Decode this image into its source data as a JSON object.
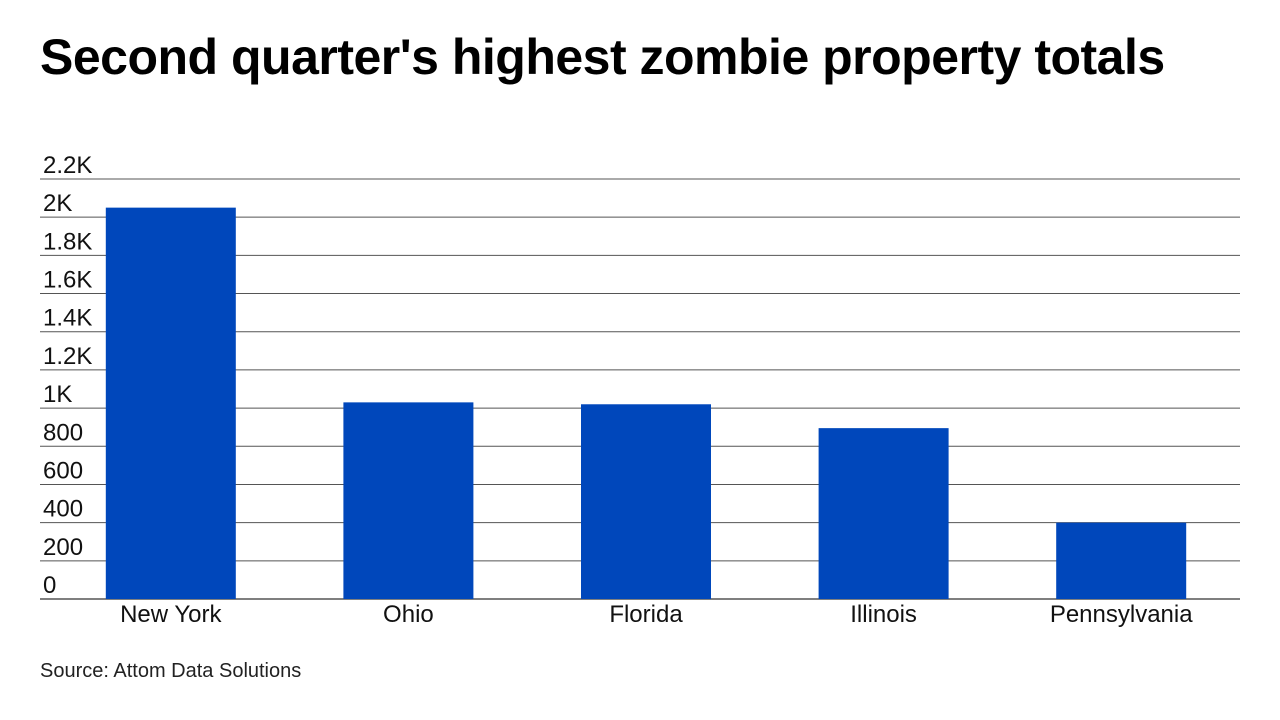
{
  "title": "Second quarter's highest zombie property totals",
  "source": "Source: Attom Data Solutions",
  "colors": {
    "bar": "#0047BB",
    "grid": "#555555",
    "text": "#111111"
  },
  "chart_data": {
    "type": "bar",
    "categories": [
      "New York",
      "Ohio",
      "Florida",
      "Illinois",
      "Pennsylvania"
    ],
    "values": [
      2050,
      1030,
      1020,
      895,
      400
    ],
    "ylim": [
      0,
      2200
    ],
    "yticks": [
      0,
      200,
      400,
      600,
      800,
      1000,
      1200,
      1400,
      1600,
      1800,
      2000,
      2200
    ],
    "ytick_labels": [
      "0",
      "200",
      "400",
      "600",
      "800",
      "1K",
      "1.2K",
      "1.4K",
      "1.6K",
      "1.8K",
      "2K",
      "2.2K"
    ],
    "grid": true,
    "legend": "none"
  }
}
